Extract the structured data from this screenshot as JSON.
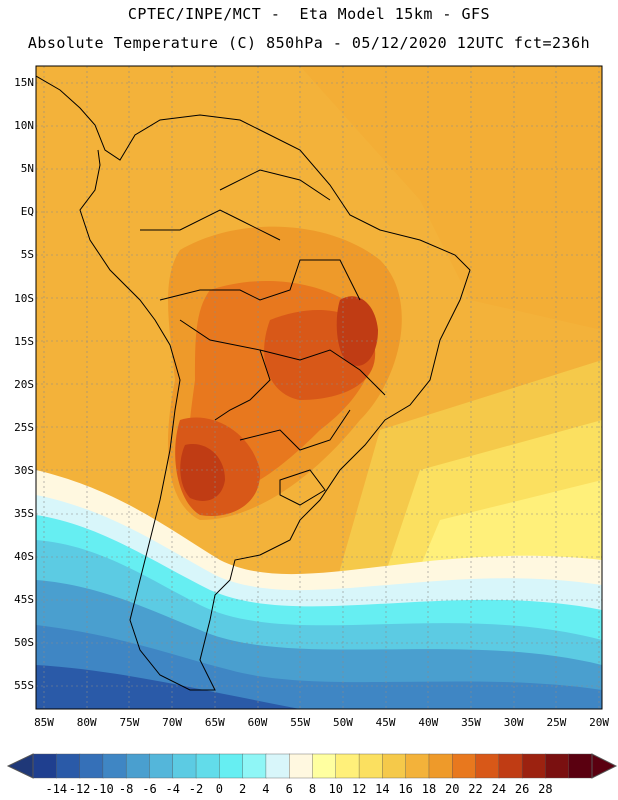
{
  "header": {
    "line1": "CPTEC/INPE/MCT -  Eta Model 15km - GFS",
    "line2": "Absolute Temperature (C) 850hPa - 05/12/2020 12UTC fct=236h"
  },
  "axes": {
    "lat_labels": [
      "15N",
      "10N",
      "5N",
      "EQ",
      "5S",
      "10S",
      "15S",
      "20S",
      "25S",
      "30S",
      "35S",
      "40S",
      "45S",
      "50S",
      "55S"
    ],
    "lon_labels": [
      "85W",
      "80W",
      "75W",
      "70W",
      "65W",
      "60W",
      "55W",
      "50W",
      "45W",
      "40W",
      "35W",
      "30W",
      "25W",
      "20W"
    ]
  },
  "colorbar": {
    "labels": [
      "-14",
      "-12",
      "-10",
      "-8",
      "-6",
      "-4",
      "-2",
      "0",
      "2",
      "4",
      "6",
      "8",
      "10",
      "12",
      "14",
      "16",
      "18",
      "20",
      "22",
      "24",
      "26",
      "28"
    ],
    "colors": [
      "#1f3f8f",
      "#2a5aa8",
      "#3570b8",
      "#3f86c4",
      "#4a9fcf",
      "#54b6da",
      "#5ccbe3",
      "#62dcea",
      "#66eef2",
      "#8ff6f6",
      "#d8f6fa",
      "#fff8e0",
      "#ffffa0",
      "#fff07a",
      "#fbe060",
      "#f5c94a",
      "#f3b23a",
      "#ee9a2a",
      "#e8781e",
      "#d85818",
      "#c03c14",
      "#9c2210",
      "#7a1010",
      "#5a0010"
    ]
  }
}
